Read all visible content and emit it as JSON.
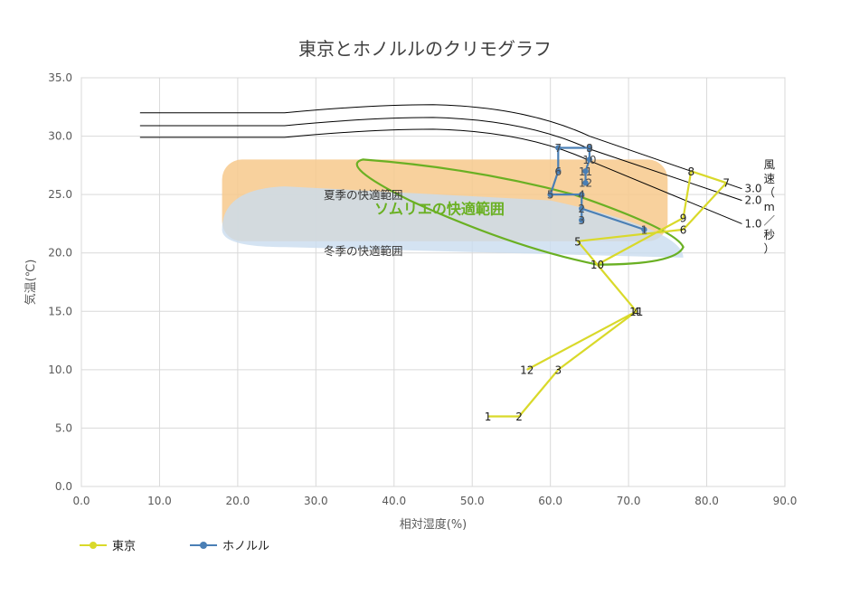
{
  "chart_data": {
    "type": "line",
    "title": "東京とホノルルのクリモグラフ",
    "xlabel": "相対湿度(%)",
    "ylabel": "気温(℃)",
    "xlim": [
      0,
      90
    ],
    "ylim": [
      0,
      35
    ],
    "xticks": [
      "0.0",
      "10.0",
      "20.0",
      "30.0",
      "40.0",
      "50.0",
      "60.0",
      "70.0",
      "80.0",
      "90.0"
    ],
    "yticks": [
      "0.0",
      "5.0",
      "10.0",
      "15.0",
      "20.0",
      "25.0",
      "30.0",
      "35.0"
    ],
    "grid": true,
    "legend_position": "bottom-left",
    "colors": {
      "tokyo": "#d9d92a",
      "honolulu": "#4a7fb5",
      "sommelier": "#6ab023",
      "summer": "#f7c98c",
      "winter": "#c9dcef",
      "wind": "#000000"
    },
    "series": [
      {
        "name": "東京",
        "labels": [
          "1",
          "2",
          "3",
          "4",
          "5",
          "6",
          "7",
          "8",
          "9",
          "10",
          "11",
          "12"
        ],
        "x": [
          52,
          56,
          61,
          71,
          63.5,
          77,
          82.5,
          78,
          77,
          66,
          71,
          57
        ],
        "y": [
          6,
          6,
          10,
          15,
          21,
          22,
          26,
          27,
          23,
          19,
          15,
          10
        ]
      },
      {
        "name": "ホノルル",
        "labels": [
          "1",
          "2",
          "3",
          "4",
          "5",
          "6",
          "7",
          "8",
          "9",
          "10",
          "11",
          "12"
        ],
        "x": [
          72,
          64,
          64,
          64,
          60,
          61,
          61,
          65,
          65,
          65,
          64.5,
          64.5
        ],
        "y": [
          22,
          23.8,
          22.8,
          25,
          25,
          27,
          29,
          29,
          29,
          28,
          27,
          26
        ]
      }
    ],
    "regions": [
      {
        "label": "夏季の快適範囲"
      },
      {
        "label": "冬季の快適範囲"
      },
      {
        "label": "ソムリエの快適範囲"
      }
    ],
    "wind_lines": {
      "heading": "風速（m／秒）",
      "levels": [
        "3.0",
        "2.0",
        "1.0"
      ]
    }
  }
}
